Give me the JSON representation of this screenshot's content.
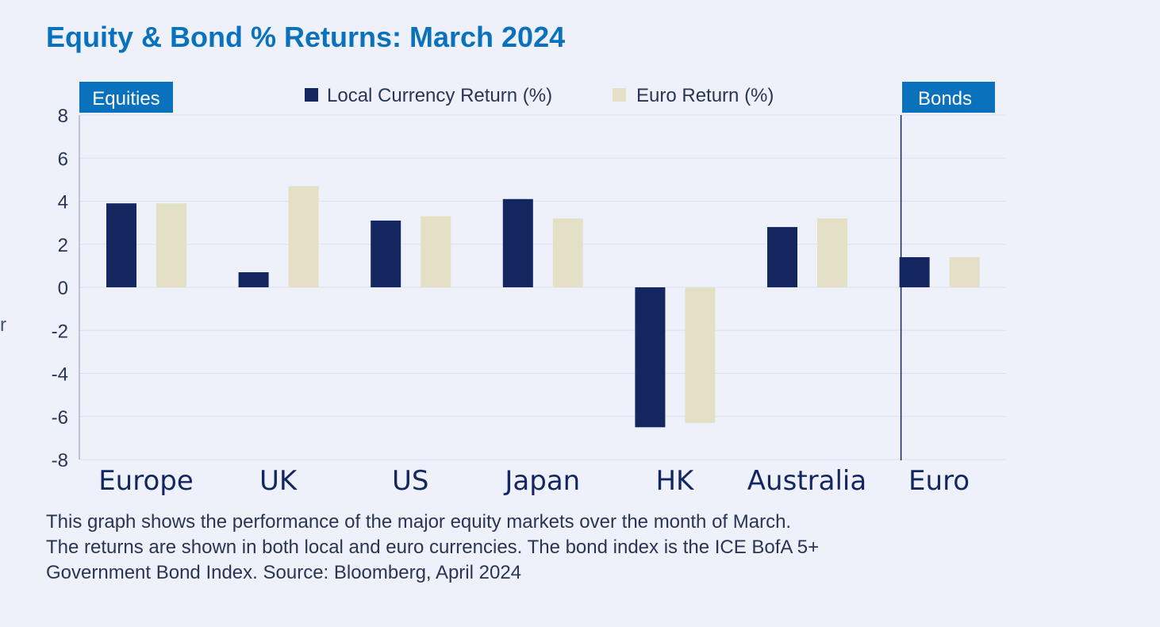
{
  "title": "Equity & Bond % Returns: March 2024",
  "stray_text": "r",
  "colors": {
    "local": "#13265f",
    "euro": "#e4e0c6",
    "accent": "#0a72bd",
    "grid": "#dde1ec",
    "axis_text": "#2a3553"
  },
  "chart_data": {
    "type": "bar",
    "title": "Equity & Bond % Returns: March 2024",
    "categories": [
      "Europe",
      "UK",
      "US",
      "Japan",
      "HK",
      "Australia",
      "Euro"
    ],
    "series": [
      {
        "name": "Local Currency Return (%)",
        "values": [
          3.9,
          0.7,
          3.1,
          4.1,
          -6.5,
          2.8,
          1.4
        ]
      },
      {
        "name": "Euro Return (%)",
        "values": [
          3.9,
          4.7,
          3.3,
          3.2,
          -6.3,
          3.2,
          1.4
        ]
      }
    ],
    "ylim": [
      -8,
      8
    ],
    "yticks": [
      8,
      6,
      4,
      2,
      0,
      -2,
      -4,
      -6,
      -8
    ],
    "grid": true,
    "legend_position": "top-center",
    "group_labels": {
      "equities": "Equities",
      "bonds": "Bonds"
    },
    "divider_before_category": "Euro"
  },
  "caption": [
    "This graph shows the performance of the major equity markets over the month of March.",
    "The returns are shown in both local and euro currencies. The bond index is the ICE BofA 5+",
    "Government Bond Index. Source: Bloomberg, April 2024"
  ]
}
